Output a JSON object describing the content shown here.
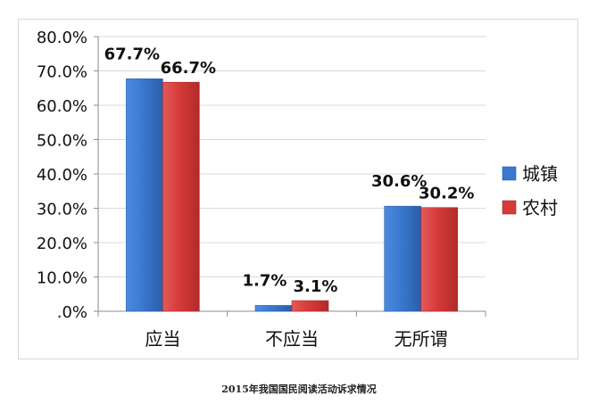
{
  "caption": "2015年我国国民阅读活动诉求情况",
  "colors": {
    "城镇": "#3a78cf",
    "农村": "#d63a3a"
  },
  "chart_data": {
    "type": "bar",
    "categories": [
      "应当",
      "不应当",
      "无所谓"
    ],
    "series": [
      {
        "name": "城镇",
        "values": [
          67.7,
          1.7,
          30.6
        ]
      },
      {
        "name": "农村",
        "values": [
          66.7,
          3.1,
          30.2
        ]
      }
    ],
    "data_labels": [
      [
        "67.7%",
        "1.7%",
        "30.6%"
      ],
      [
        "66.7%",
        "3.1%",
        "30.2%"
      ]
    ],
    "yticks": [
      ".0%",
      "10.0%",
      "20.0%",
      "30.0%",
      "40.0%",
      "50.0%",
      "60.0%",
      "70.0%",
      "80.0%"
    ],
    "ylim": [
      0,
      80
    ],
    "grid": true,
    "legend": "right"
  }
}
